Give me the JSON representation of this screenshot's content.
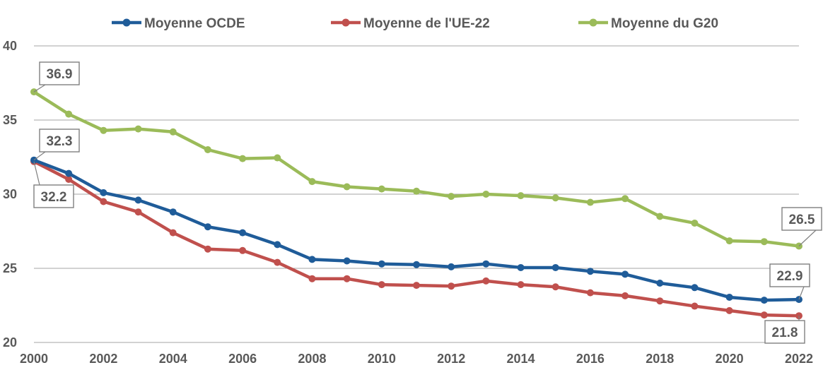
{
  "chart_data": {
    "type": "line",
    "x": [
      2000,
      2001,
      2002,
      2003,
      2004,
      2005,
      2006,
      2007,
      2008,
      2009,
      2010,
      2011,
      2012,
      2013,
      2014,
      2015,
      2016,
      2017,
      2018,
      2019,
      2020,
      2021,
      2022
    ],
    "xticks": [
      "2000",
      "2002",
      "2004",
      "2006",
      "2008",
      "2010",
      "2012",
      "2014",
      "2016",
      "2018",
      "2020",
      "2022"
    ],
    "yticks": [
      "20",
      "25",
      "30",
      "35",
      "40"
    ],
    "ylim": [
      20,
      40
    ],
    "xlim": [
      2000,
      2022
    ],
    "grid": "horizontal",
    "legend_position": "top",
    "series": [
      {
        "name": "Moyenne OCDE",
        "color": "#1f5c99",
        "values": [
          32.3,
          31.4,
          30.1,
          29.6,
          28.8,
          27.8,
          27.4,
          26.6,
          25.6,
          25.5,
          25.3,
          25.25,
          25.1,
          25.3,
          25.05,
          25.05,
          24.8,
          24.6,
          24.0,
          23.7,
          23.05,
          22.85,
          22.9
        ]
      },
      {
        "name": "Moyenne de l'UE-22",
        "color": "#c0504d",
        "values": [
          32.2,
          31.0,
          29.5,
          28.8,
          27.4,
          26.3,
          26.2,
          25.4,
          24.3,
          24.3,
          23.9,
          23.85,
          23.8,
          24.15,
          23.9,
          23.75,
          23.35,
          23.15,
          22.8,
          22.45,
          22.15,
          21.85,
          21.8
        ]
      },
      {
        "name": "Moyenne du G20",
        "color": "#9bbb59",
        "values": [
          36.9,
          35.4,
          34.3,
          34.4,
          34.2,
          33.0,
          32.4,
          32.45,
          30.85,
          30.5,
          30.35,
          30.2,
          29.85,
          30.0,
          29.9,
          29.75,
          29.45,
          29.7,
          28.5,
          28.05,
          26.85,
          26.8,
          26.5
        ]
      }
    ],
    "annotations": [
      {
        "series": "Moyenne du G20",
        "x": 2000,
        "label": "36.9"
      },
      {
        "series": "Moyenne OCDE",
        "x": 2000,
        "label": "32.3"
      },
      {
        "series": "Moyenne de l'UE-22",
        "x": 2000,
        "label": "32.2"
      },
      {
        "series": "Moyenne du G20",
        "x": 2022,
        "label": "26.5"
      },
      {
        "series": "Moyenne OCDE",
        "x": 2022,
        "label": "22.9"
      },
      {
        "series": "Moyenne de l'UE-22",
        "x": 2022,
        "label": "21.8"
      }
    ]
  }
}
